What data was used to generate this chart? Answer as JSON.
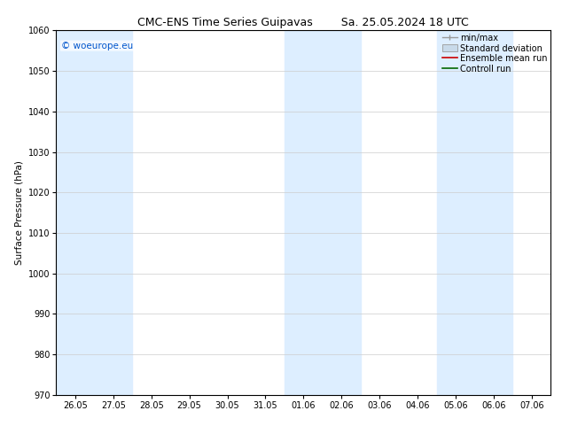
{
  "title_left": "CMC-ENS Time Series Guipavas",
  "title_right": "Sa. 25.05.2024 18 UTC",
  "ylabel": "Surface Pressure (hPa)",
  "ylim": [
    970,
    1060
  ],
  "yticks": [
    970,
    980,
    990,
    1000,
    1010,
    1020,
    1030,
    1040,
    1050,
    1060
  ],
  "xtick_labels": [
    "26.05",
    "27.05",
    "28.05",
    "29.05",
    "30.05",
    "31.05",
    "01.06",
    "02.06",
    "03.06",
    "04.06",
    "05.06",
    "06.06",
    "07.06"
  ],
  "watermark": "© woeurope.eu",
  "watermark_color": "#0055cc",
  "shaded_columns": [
    0,
    1,
    6,
    7,
    10,
    11
  ],
  "shaded_color": "#ddeeff",
  "background_color": "#ffffff",
  "legend_labels": [
    "min/max",
    "Standard deviation",
    "Ensemble mean run",
    "Controll run"
  ],
  "minmax_color": "#999999",
  "std_facecolor": "#c8daea",
  "ensemble_color": "#cc0000",
  "control_color": "#006600",
  "title_fontsize": 9,
  "label_fontsize": 7.5,
  "tick_fontsize": 7,
  "watermark_fontsize": 7.5
}
